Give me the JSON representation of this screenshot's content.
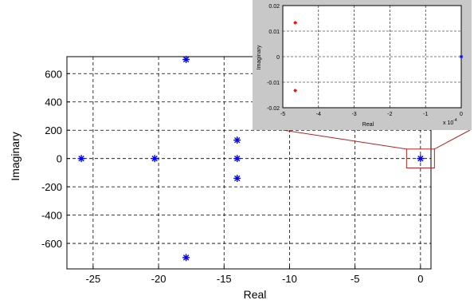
{
  "chart_data": [
    {
      "type": "scatter",
      "title": "",
      "xlabel": "Real",
      "ylabel": "Imaginary",
      "xlim": [
        -27,
        0.8
      ],
      "ylim": [
        -780,
        720
      ],
      "xticks": [
        -25,
        -20,
        -15,
        -10,
        -5,
        0
      ],
      "xtick_labels": [
        "-25",
        "-20",
        "-15",
        "-10",
        "-5",
        "0"
      ],
      "yticks": [
        600,
        400,
        200,
        0,
        -200,
        -400,
        -600
      ],
      "ytick_labels": [
        "600",
        "400",
        "200",
        "0",
        "-200",
        "-400",
        "-600"
      ],
      "grid": true,
      "series": [
        {
          "marker": "asterisk",
          "color": "#0000ff",
          "points": [
            {
              "x": -25.9,
              "y": 0
            },
            {
              "x": -20.3,
              "y": 0
            },
            {
              "x": -17.9,
              "y": 700
            },
            {
              "x": -17.9,
              "y": -700
            },
            {
              "x": -14.0,
              "y": 130
            },
            {
              "x": -14.0,
              "y": 0
            },
            {
              "x": -14.0,
              "y": -140
            },
            {
              "x": 0,
              "y": 0
            }
          ]
        }
      ],
      "zoom_box": {
        "x": [
          -0.7,
          0.7
        ],
        "y": [
          -50,
          50
        ],
        "color": "#b22222"
      }
    },
    {
      "type": "scatter",
      "title": "",
      "xlabel": "Real",
      "ylabel": "Imaginary",
      "xlim": [
        -0.0005,
        0
      ],
      "ylim": [
        -0.02,
        0.02
      ],
      "xticks": [
        -5,
        -4,
        -3,
        -2,
        -1,
        0
      ],
      "xtick_labels": [
        "-5",
        "-4",
        "-3",
        "-2",
        "-1",
        "0"
      ],
      "x_multiplier_label": "x 10",
      "x_multiplier_exp": "-4",
      "yticks": [
        0.02,
        0.01,
        0,
        -0.01,
        -0.02
      ],
      "ytick_labels": [
        "0.02",
        "0.01",
        "0",
        "-0.01",
        "-0.02"
      ],
      "grid": true,
      "series": [
        {
          "marker": "asterisk",
          "color": "#ff0000",
          "points": [
            {
              "x": -0.000465,
              "y": 0.0133
            },
            {
              "x": -0.000465,
              "y": -0.0133
            }
          ]
        },
        {
          "marker": "asterisk",
          "color": "#0000ff",
          "points": [
            {
              "x": 0,
              "y": 0
            }
          ]
        }
      ]
    }
  ]
}
